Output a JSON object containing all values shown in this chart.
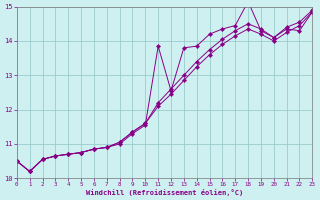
{
  "xlabel": "Windchill (Refroidissement éolien,°C)",
  "xlim": [
    0,
    23
  ],
  "ylim": [
    10,
    15
  ],
  "xticks": [
    0,
    1,
    2,
    3,
    4,
    5,
    6,
    7,
    8,
    9,
    10,
    11,
    12,
    13,
    14,
    15,
    16,
    17,
    18,
    19,
    20,
    21,
    22,
    23
  ],
  "yticks": [
    10,
    11,
    12,
    13,
    14,
    15
  ],
  "bg_color": "#cff0f0",
  "line_color": "#880088",
  "grid_color": "#99cccc",
  "lines": {
    "line1_x": [
      0,
      1,
      2,
      3,
      4,
      5,
      6,
      7,
      8,
      9,
      10,
      11,
      12,
      13,
      14,
      15,
      16,
      17,
      18,
      19,
      20,
      21,
      22,
      23
    ],
    "line1_y": [
      10.5,
      10.2,
      10.55,
      10.65,
      10.7,
      10.75,
      10.85,
      10.9,
      11.0,
      11.3,
      11.55,
      13.85,
      12.55,
      13.8,
      13.85,
      14.2,
      14.35,
      14.45,
      15.15,
      14.3,
      14.1,
      14.35,
      14.3,
      14.85
    ],
    "line2_x": [
      0,
      1,
      2,
      3,
      4,
      5,
      6,
      7,
      8,
      9,
      10,
      11,
      12,
      13,
      14,
      15,
      16,
      17,
      18,
      19,
      20,
      21,
      22,
      23
    ],
    "line2_y": [
      10.5,
      10.2,
      10.55,
      10.65,
      10.7,
      10.75,
      10.85,
      10.9,
      11.05,
      11.35,
      11.6,
      12.2,
      12.6,
      13.0,
      13.4,
      13.75,
      14.05,
      14.3,
      14.5,
      14.35,
      14.1,
      14.4,
      14.55,
      14.9
    ],
    "line3_x": [
      0,
      1,
      2,
      3,
      4,
      5,
      6,
      7,
      8,
      9,
      10,
      11,
      12,
      13,
      14,
      15,
      16,
      17,
      18,
      19,
      20,
      21,
      22,
      23
    ],
    "line3_y": [
      10.5,
      10.2,
      10.55,
      10.65,
      10.7,
      10.75,
      10.85,
      10.9,
      11.05,
      11.35,
      11.6,
      12.1,
      12.45,
      12.85,
      13.25,
      13.6,
      13.9,
      14.15,
      14.35,
      14.2,
      14.0,
      14.25,
      14.45,
      14.85
    ]
  }
}
